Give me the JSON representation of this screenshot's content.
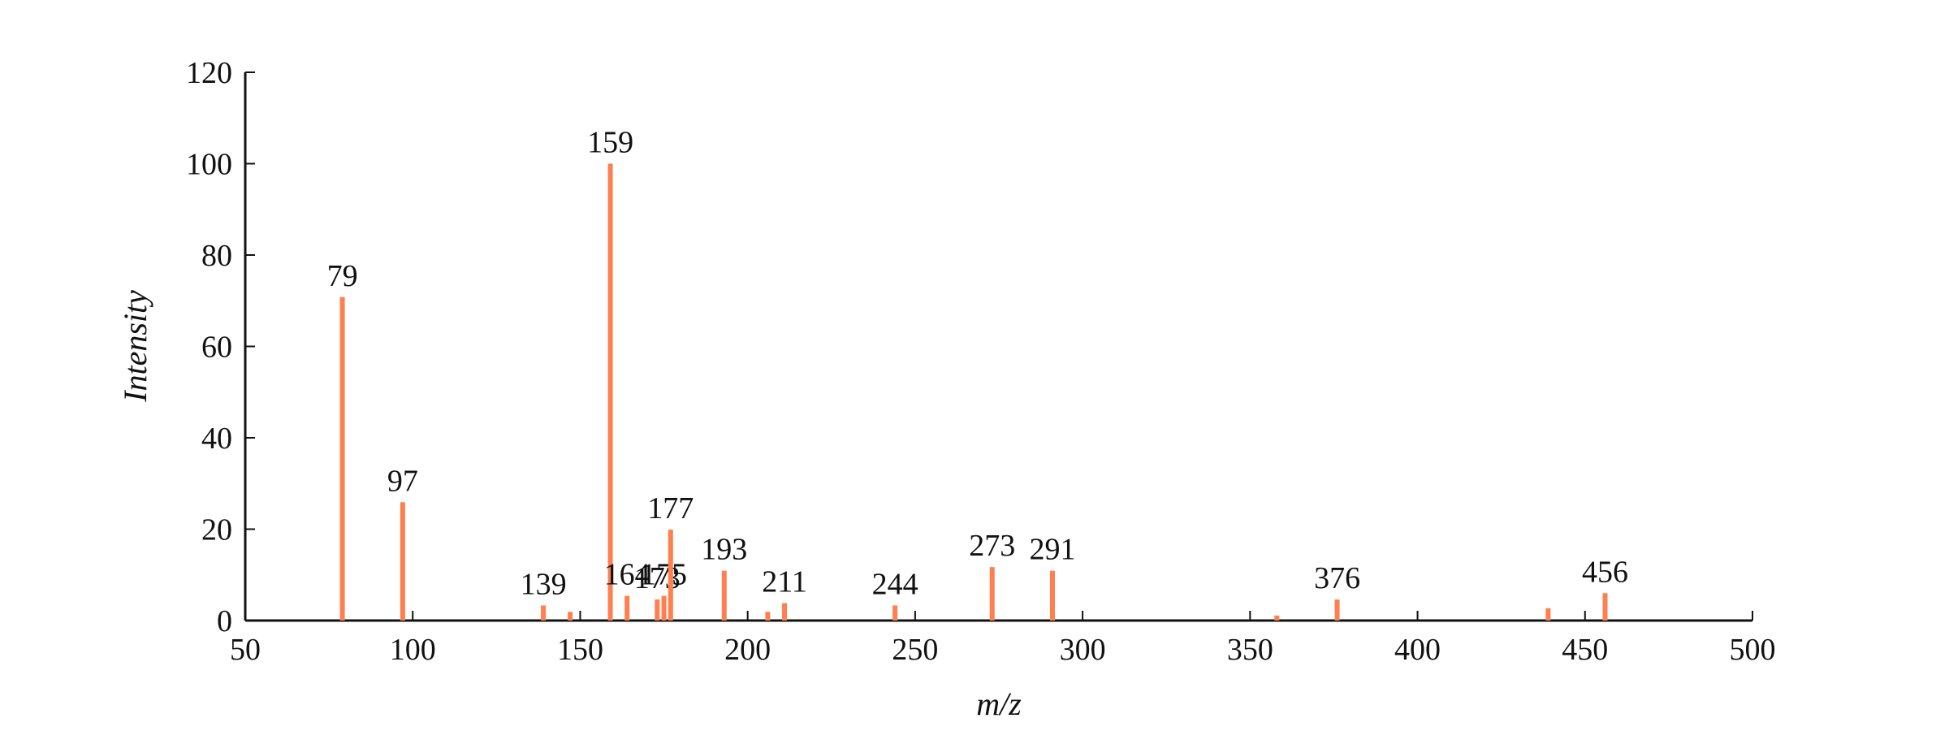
{
  "chart_data": {
    "type": "stem",
    "xlabel": "m/z",
    "ylabel": "Intensity",
    "x": [
      79,
      97,
      139,
      147,
      159,
      164,
      173,
      175,
      177,
      193,
      206,
      211,
      244,
      273,
      291,
      358,
      376,
      439,
      456
    ],
    "values": [
      70.8,
      25.9,
      3.3,
      1.9,
      100,
      5.4,
      4.6,
      5.4,
      19.9,
      10.9,
      1.9,
      3.8,
      3.3,
      11.7,
      10.9,
      1.1,
      4.6,
      2.7,
      6
    ],
    "labels": [
      "79",
      "97",
      "139",
      null,
      "159",
      "164",
      "173",
      "175",
      "177",
      "193",
      null,
      "211",
      "244",
      "273",
      "291",
      null,
      "376",
      null,
      "456"
    ],
    "color": "#ff7f50",
    "xlim": [
      50,
      500
    ],
    "xticks": [
      50,
      100,
      150,
      200,
      250,
      300,
      350,
      400,
      450,
      500
    ],
    "ylim": [
      0,
      120
    ],
    "yticks": [
      0,
      20,
      40,
      60,
      80,
      100,
      120
    ]
  }
}
